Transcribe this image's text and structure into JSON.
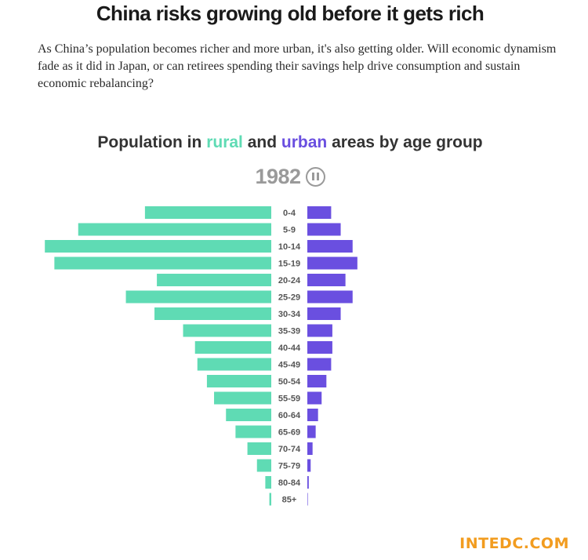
{
  "headline": "China risks growing old before it gets rich",
  "dek": "As China’s population becomes richer and more urban, it's also getting older. Will economic dynamism fade as it did in Japan, or can retirees spending their savings help drive consumption and sustain economic rebalancing?",
  "chart_title": {
    "prefix": "Population in ",
    "rural_word": "rural",
    "middle": " and ",
    "urban_word": "urban",
    "suffix": " areas by age group"
  },
  "year": "1982",
  "pause_icon": "pause-circle-icon",
  "brand": "INTEDC.COM",
  "colors": {
    "rural": "#5fdbb4",
    "urban": "#6a4fe0",
    "label": "#555555"
  },
  "chart_data": {
    "type": "bar",
    "orientation": "horizontal-pyramid",
    "categories": [
      "0-4",
      "5-9",
      "10-14",
      "15-19",
      "20-24",
      "25-29",
      "30-34",
      "35-39",
      "40-44",
      "45-49",
      "50-54",
      "55-59",
      "60-64",
      "65-69",
      "70-74",
      "75-79",
      "80-84",
      "85+"
    ],
    "series": [
      {
        "name": "rural",
        "values": [
          53,
          81,
          95,
          91,
          48,
          61,
          49,
          37,
          32,
          31,
          27,
          24,
          19,
          15,
          10,
          6,
          2.5,
          0.8
        ]
      },
      {
        "name": "urban",
        "values": [
          10,
          14,
          19,
          21,
          16,
          19,
          14,
          10.5,
          10.5,
          10,
          8,
          6,
          4.5,
          3.5,
          2.2,
          1.4,
          0.6,
          0.2
        ]
      }
    ],
    "title": "Population in rural and urban areas by age group",
    "xlabel": "",
    "ylabel": "",
    "grid": false,
    "legend": "inline-in-title"
  }
}
